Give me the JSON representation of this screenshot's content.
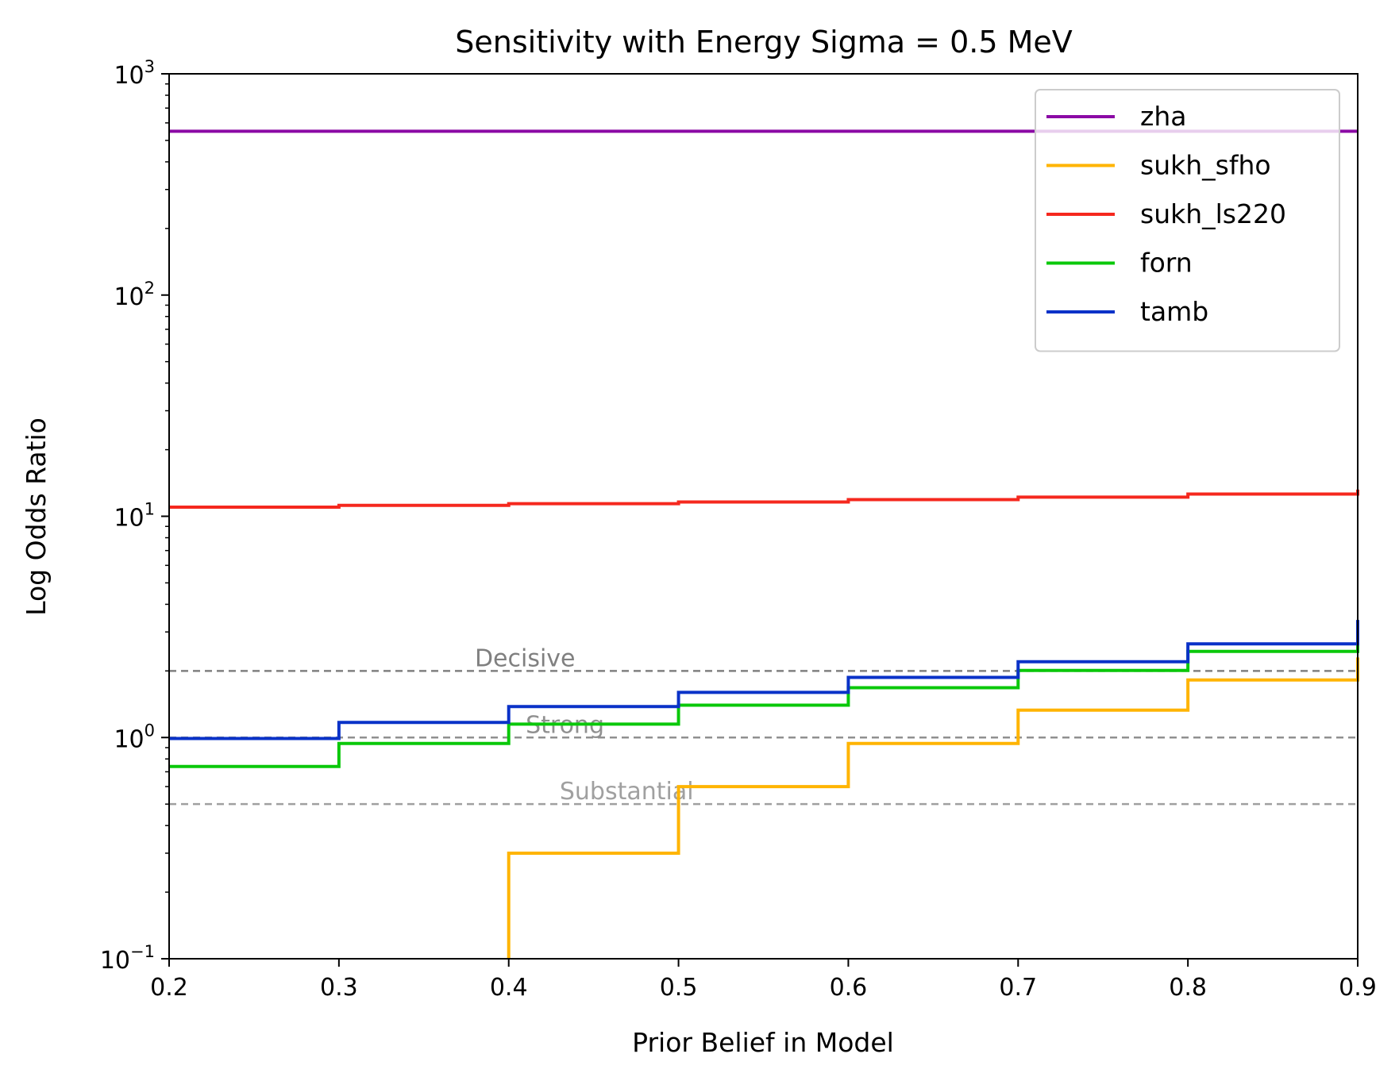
{
  "chart_data": {
    "type": "line",
    "step": "post",
    "title": "Sensitivity with Energy Sigma = 0.5 MeV",
    "xlabel": "Prior Belief in Model",
    "ylabel": "Log Odds Ratio",
    "xlim": [
      0.2,
      0.9
    ],
    "ylim": [
      0.1,
      1000
    ],
    "yscale": "log",
    "xticks": [
      0.2,
      0.3,
      0.4,
      0.5,
      0.6,
      0.7,
      0.8,
      0.9
    ],
    "xtick_labels": [
      "0.2",
      "0.3",
      "0.4",
      "0.5",
      "0.6",
      "0.7",
      "0.8",
      "0.9"
    ],
    "yticks": [
      0.1,
      1,
      10,
      100,
      1000
    ],
    "ytick_labels": [
      {
        "base": "10",
        "exp": "−1"
      },
      {
        "base": "10",
        "exp": "0"
      },
      {
        "base": "10",
        "exp": "1"
      },
      {
        "base": "10",
        "exp": "2"
      },
      {
        "base": "10",
        "exp": "3"
      }
    ],
    "legend_position": "top-right",
    "x": [
      0.2,
      0.3,
      0.4,
      0.5,
      0.6,
      0.7,
      0.8,
      0.9
    ],
    "series": [
      {
        "name": "zha",
        "color": "#8b0aa5",
        "values": [
          550,
          550,
          550,
          550,
          550,
          550,
          550,
          550
        ]
      },
      {
        "name": "sukh_sfho",
        "color": "#ffb400",
        "values": [
          null,
          null,
          0.3,
          0.6,
          0.94,
          1.33,
          1.82,
          2.3
        ]
      },
      {
        "name": "sukh_ls220",
        "color": "#f5281e",
        "values": [
          11.0,
          11.2,
          11.4,
          11.6,
          11.9,
          12.2,
          12.6,
          13.2
        ]
      },
      {
        "name": "forn",
        "color": "#0ac80a",
        "values": [
          0.74,
          0.94,
          1.15,
          1.4,
          1.68,
          2.01,
          2.45,
          2.9
        ]
      },
      {
        "name": "tamb",
        "color": "#0a32c8",
        "values": [
          0.99,
          1.17,
          1.38,
          1.6,
          1.87,
          2.2,
          2.65,
          3.4
        ]
      }
    ],
    "reference_lines": [
      {
        "label": "Decisive",
        "y": 2.0,
        "color": "#808080",
        "label_x": 0.38
      },
      {
        "label": "Strong",
        "y": 1.0,
        "color": "#909090",
        "label_x": 0.41
      },
      {
        "label": "Substantial",
        "y": 0.5,
        "color": "#a0a0a0",
        "label_x": 0.43
      }
    ]
  }
}
